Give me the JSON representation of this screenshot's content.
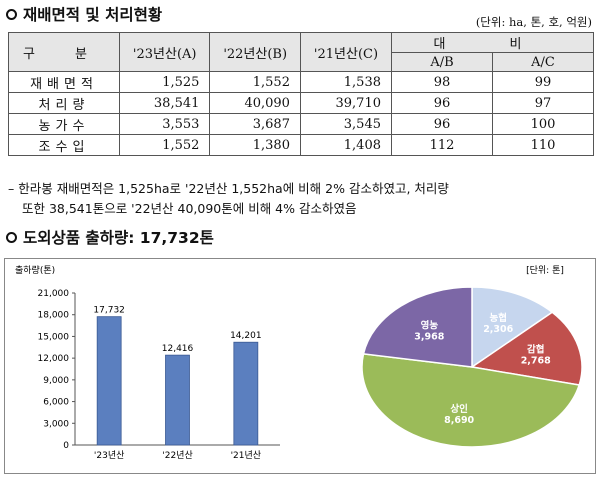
{
  "section1": {
    "title": "재배면적 및 처리현황",
    "unit": "(단위: ha, 톤, 호, 억원)"
  },
  "table": {
    "headers": {
      "category": "구 분",
      "y23": "'23년산(A)",
      "y22": "'22년산(B)",
      "y21": "'21년산(C)",
      "compare": "대 비",
      "ab": "A/B",
      "ac": "A/C"
    },
    "rows": [
      {
        "label": "재배면적",
        "y23": "1,525",
        "y22": "1,552",
        "y21": "1,538",
        "ab": "98",
        "ac": "99"
      },
      {
        "label": "처리량",
        "y23": "38,541",
        "y22": "40,090",
        "y21": "39,710",
        "ab": "96",
        "ac": "97"
      },
      {
        "label": "농가수",
        "y23": "3,553",
        "y22": "3,687",
        "y21": "3,545",
        "ab": "96",
        "ac": "100"
      },
      {
        "label": "조수입",
        "y23": "1,552",
        "y22": "1,380",
        "y21": "1,408",
        "ab": "112",
        "ac": "110"
      }
    ]
  },
  "notes": {
    "line1": "– 한라봉 재배면적은 1,525ha로 '22년산 1,552ha에 비해 2% 감소하였고, 처리량",
    "line2": "또한 38,541톤으로 '22년산 40,090톤에 비해 4% 감소하였음"
  },
  "section2": {
    "title": "도외상품 출하량: 17,732톤"
  },
  "chart_data": [
    {
      "type": "bar",
      "ylabel": "출하량(톤)",
      "categories": [
        "'23년산",
        "'22년산",
        "'21년산"
      ],
      "values": [
        17732,
        12416,
        14201
      ],
      "value_labels": [
        "17,732",
        "12,416",
        "14,201"
      ],
      "ylim": [
        0,
        21000
      ],
      "yticks": [
        "0",
        "3,000",
        "6,000",
        "9,000",
        "12,000",
        "15,000",
        "18,000",
        "21,000"
      ],
      "color": "#5b7fbf"
    },
    {
      "type": "pie",
      "unit": "[단위: 톤]",
      "slices": [
        {
          "label": "농협",
          "value": 2306,
          "value_label": "2,306",
          "color": "#c6d6ee"
        },
        {
          "label": "감협",
          "value": 2768,
          "value_label": "2,768",
          "color": "#c0504d"
        },
        {
          "label": "상인",
          "value": 8690,
          "value_label": "8,690",
          "color": "#9bbb59"
        },
        {
          "label": "영농",
          "value": 3968,
          "value_label": "3,968",
          "color": "#7c67a6"
        }
      ]
    }
  ]
}
